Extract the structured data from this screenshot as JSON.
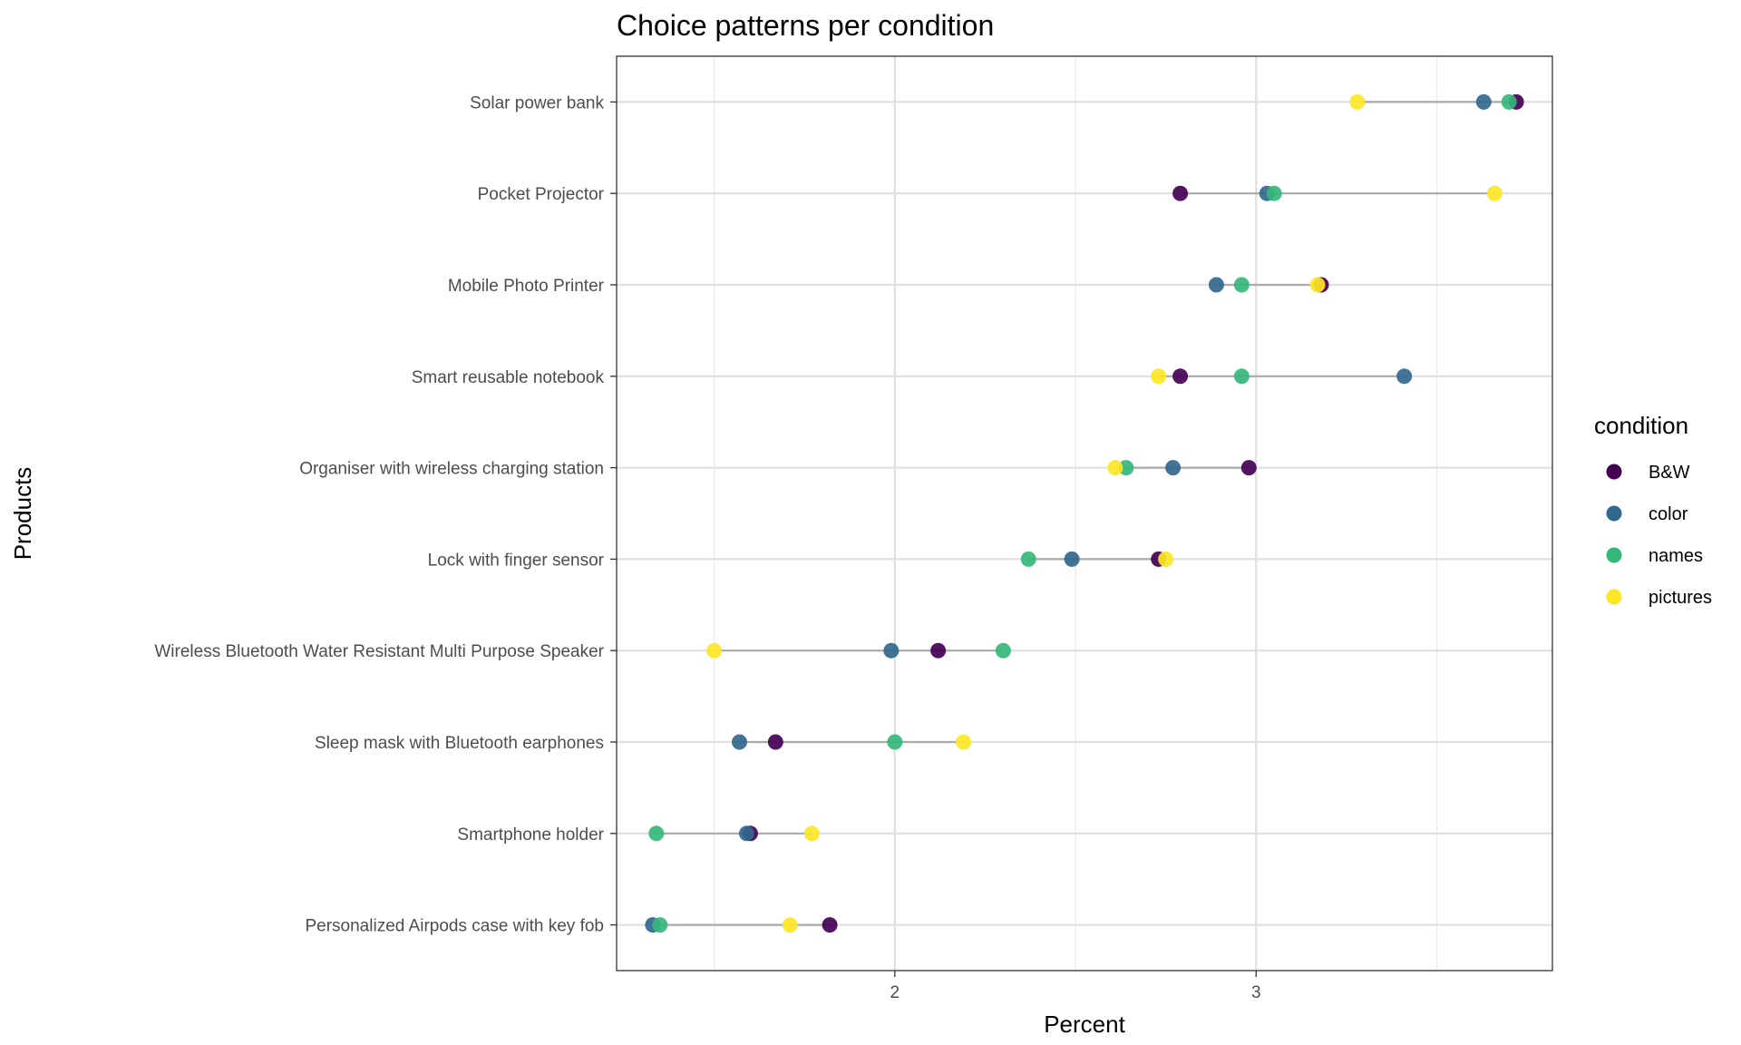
{
  "chart_data": {
    "type": "scatter",
    "title": "Choice patterns per condition",
    "xlabel": "Percent",
    "ylabel": "Products",
    "xlim": [
      1.23,
      3.82
    ],
    "x_ticks": [
      2,
      3
    ],
    "x_tick_labels": [
      "2",
      "3"
    ],
    "x_minor_ticks": [
      1.5,
      2.5,
      3.5
    ],
    "grid": true,
    "legend": {
      "title": "condition",
      "position": "right"
    },
    "categories": [
      "Solar power bank",
      "Pocket Projector",
      "Mobile Photo Printer",
      "Smart reusable notebook",
      "Organiser with wireless charging station",
      "Lock with finger sensor",
      "Wireless Bluetooth Water Resistant Multi Purpose Speaker",
      "Sleep mask with Bluetooth earphones",
      "Smartphone holder",
      "Personalized Airpods case with key fob"
    ],
    "series": [
      {
        "name": "B&W",
        "color": "#440154",
        "values": [
          3.72,
          2.79,
          3.18,
          2.79,
          2.98,
          2.73,
          2.12,
          1.67,
          1.6,
          1.82
        ]
      },
      {
        "name": "color",
        "color": "#31688E",
        "values": [
          3.63,
          3.03,
          2.89,
          3.41,
          2.77,
          2.49,
          1.99,
          1.57,
          1.59,
          1.33
        ]
      },
      {
        "name": "names",
        "color": "#35B779",
        "values": [
          3.7,
          3.05,
          2.96,
          2.96,
          2.64,
          2.37,
          2.3,
          2.0,
          1.34,
          1.35
        ]
      },
      {
        "name": "pictures",
        "color": "#FDE725",
        "values": [
          3.28,
          3.66,
          3.17,
          2.73,
          2.61,
          2.75,
          1.5,
          2.19,
          1.77,
          1.71
        ]
      }
    ],
    "range_line_color": "#aaaaaa"
  }
}
